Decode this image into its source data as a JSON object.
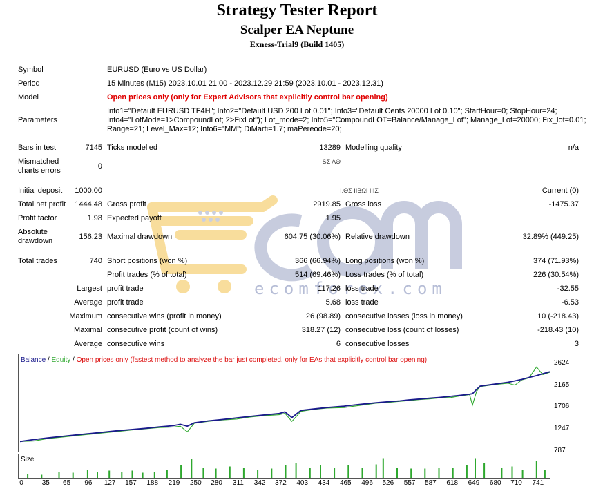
{
  "header": {
    "title": "Strategy Tester Report",
    "ea_name": "Scalper EA Neptune",
    "server": "Exness-Trial9 (Build 1405)"
  },
  "settings": {
    "symbol_label": "Symbol",
    "symbol_value": "EURUSD (Euro vs US Dollar)",
    "period_label": "Period",
    "period_value": "15 Minutes (M15) 2023.10.01 21:00 - 2023.12.29 21:59 (2023.10.01 - 2023.12.31)",
    "model_label": "Model",
    "model_value": "Open prices only (only for Expert Advisors that explicitly control bar opening)",
    "parameters_label": "Parameters",
    "parameters_lines": [
      "Info1=\"Default EURUSD TF4H\"; Info2=\"Default USD 200 Lot 0.01\"; Info3=\"Default Cents 20000 Lot 0.10\"; StartHour=0; StopHour=24;",
      "Info4=\"LotMode=1>CompoundLot; 2>FixLot\"); Lot_mode=2; Info5=\"CompoundLOT=Balance/Manage_Lot\"; Manage_Lot=20000; Fix_lot=0.01;",
      "Range=21; Level_Max=12; Info6=\"MM\"; DiMarti=1.7; maPereode=20;"
    ]
  },
  "stats": {
    "bars_in_test_label": "Bars in test",
    "bars_in_test": "7145",
    "ticks_modelled_label": "Ticks modelled",
    "ticks_modelled": "13289",
    "modelling_quality_label": "Modelling quality",
    "modelling_quality": "n/a",
    "mismatched_label_1": "Mismatched",
    "mismatched_label_2": "charts errors",
    "mismatched": "0",
    "mismatched_mid": "ЅΣ ΛΘ",
    "initial_deposit_label": "Initial deposit",
    "initial_deposit": "1000.00",
    "spread_mid": "Ι.ΘΣ ΙΙΒΩΙ ΙΙΙΣ",
    "spread_right": "Current (0)",
    "total_net_profit_label": "Total net profit",
    "total_net_profit": "1444.48",
    "gross_profit_label": "Gross profit",
    "gross_profit": "2919.85",
    "gross_loss_label": "Gross loss",
    "gross_loss": "-1475.37",
    "profit_factor_label": "Profit factor",
    "profit_factor": "1.98",
    "expected_payoff_label": "Expected payoff",
    "expected_payoff": "1.95",
    "absolute_drawdown_label_1": "Absolute",
    "absolute_drawdown_label_2": "drawdown",
    "absolute_drawdown": "156.23",
    "maximal_drawdown_label": "Maximal drawdown",
    "maximal_drawdown": "604.75 (30.06%)",
    "relative_drawdown_label": "Relative drawdown",
    "relative_drawdown": "32.89% (449.25)",
    "total_trades_label": "Total trades",
    "total_trades": "740",
    "short_positions_label": "Short positions (won %)",
    "short_positions": "366 (66.94%)",
    "long_positions_label": "Long positions (won %)",
    "long_positions": "374 (71.93%)",
    "profit_trades_label": "Profit trades (% of total)",
    "profit_trades": "514 (69.46%)",
    "loss_trades_label": "Loss trades (% of total)",
    "loss_trades": "226 (30.54%)",
    "largest_label": "Largest",
    "largest_profit_label": "profit trade",
    "largest_profit": "117.26",
    "largest_loss_label": "loss trade",
    "largest_loss": "-32.55",
    "average_label": "Average",
    "average_profit_label": "profit trade",
    "average_profit": "5.68",
    "average_loss_label": "loss trade",
    "average_loss": "-6.53",
    "maximum_label": "Maximum",
    "max_cons_wins_label": "consecutive wins (profit in money)",
    "max_cons_wins": "26 (98.89)",
    "max_cons_losses_label": "consecutive losses (loss in money)",
    "max_cons_losses": "10 (-218.43)",
    "maximal_label": "Maximal",
    "maximal_cons_profit_label": "consecutive profit (count of wins)",
    "maximal_cons_profit": "318.27 (12)",
    "maximal_cons_loss_label": "consecutive loss (count of losses)",
    "maximal_cons_loss": "-218.43 (10)",
    "average2_label": "Average",
    "avg_cons_wins_label": "consecutive wins",
    "avg_cons_wins": "6",
    "avg_cons_losses_label": "consecutive losses",
    "avg_cons_losses": "3"
  },
  "watermark": {
    "brand": "ecomforex.com"
  },
  "chart_legend": {
    "balance": "Balance",
    "sep1": " / ",
    "equity": "Equity",
    "sep2": " / ",
    "rest": "Open prices only (fastest method to analyze the bar just completed, only for EAs that explicitly control bar opening)"
  },
  "size_label": "Size",
  "colors": {
    "balance": "#1a1a8c",
    "equity": "#2ea82e",
    "size_bars": "#2ea82e",
    "model_text": "#e00000"
  },
  "chart_data": {
    "type": "line",
    "title": "",
    "y_ticks": [
      "2624",
      "2165",
      "1706",
      "1247",
      "787"
    ],
    "x_ticks": [
      "0",
      "35",
      "65",
      "96",
      "127",
      "157",
      "188",
      "219",
      "250",
      "280",
      "311",
      "342",
      "372",
      "403",
      "434",
      "465",
      "496",
      "526",
      "557",
      "587",
      "618",
      "649",
      "680",
      "710",
      "741"
    ],
    "ylim": [
      787,
      2624
    ],
    "xlim": [
      0,
      760
    ],
    "series": [
      {
        "name": "Balance",
        "x": [
          0,
          20,
          40,
          60,
          80,
          100,
          120,
          140,
          160,
          180,
          200,
          219,
          230,
          240,
          250,
          270,
          290,
          311,
          330,
          350,
          372,
          380,
          390,
          403,
          420,
          440,
          465,
          480,
          496,
          510,
          526,
          545,
          557,
          575,
          587,
          600,
          618,
          630,
          645,
          649,
          655,
          660,
          680,
          700,
          710,
          720,
          730,
          741,
          750,
          760
        ],
        "y": [
          1000,
          1040,
          1075,
          1105,
          1135,
          1165,
          1195,
          1225,
          1250,
          1275,
          1305,
          1330,
          1360,
          1320,
          1390,
          1430,
          1460,
          1495,
          1525,
          1555,
          1585,
          1620,
          1500,
          1650,
          1680,
          1710,
          1740,
          1765,
          1790,
          1810,
          1830,
          1850,
          1870,
          1890,
          1905,
          1920,
          1945,
          1965,
          1990,
          2000,
          2090,
          2160,
          2200,
          2240,
          2270,
          2300,
          2340,
          2380,
          2420,
          2460
        ]
      },
      {
        "name": "Equity",
        "x": [
          0,
          20,
          40,
          60,
          80,
          100,
          120,
          140,
          160,
          180,
          200,
          219,
          230,
          240,
          250,
          270,
          290,
          311,
          330,
          350,
          372,
          380,
          390,
          403,
          420,
          440,
          465,
          480,
          496,
          510,
          526,
          545,
          557,
          575,
          587,
          600,
          618,
          630,
          645,
          649,
          655,
          660,
          680,
          700,
          710,
          720,
          730,
          741,
          750,
          760
        ],
        "y": [
          1000,
          1010,
          1060,
          1090,
          1120,
          1150,
          1180,
          1210,
          1240,
          1265,
          1290,
          1300,
          1320,
          1200,
          1380,
          1420,
          1450,
          1470,
          1510,
          1540,
          1560,
          1590,
          1420,
          1630,
          1670,
          1700,
          1710,
          1740,
          1770,
          1800,
          1815,
          1840,
          1855,
          1880,
          1890,
          1910,
          1920,
          1950,
          1980,
          1760,
          2050,
          2150,
          2190,
          2220,
          2180,
          2290,
          2330,
          2560,
          2400,
          2450
        ]
      }
    ],
    "size_bars": [
      {
        "x": 10,
        "h": 0.2
      },
      {
        "x": 30,
        "h": 0.15
      },
      {
        "x": 55,
        "h": 0.3
      },
      {
        "x": 75,
        "h": 0.25
      },
      {
        "x": 96,
        "h": 0.4
      },
      {
        "x": 110,
        "h": 0.3
      },
      {
        "x": 127,
        "h": 0.35
      },
      {
        "x": 145,
        "h": 0.3
      },
      {
        "x": 160,
        "h": 0.35
      },
      {
        "x": 175,
        "h": 0.25
      },
      {
        "x": 192,
        "h": 0.3
      },
      {
        "x": 210,
        "h": 0.4
      },
      {
        "x": 230,
        "h": 0.6
      },
      {
        "x": 245,
        "h": 0.9
      },
      {
        "x": 262,
        "h": 0.5
      },
      {
        "x": 280,
        "h": 0.45
      },
      {
        "x": 300,
        "h": 0.55
      },
      {
        "x": 320,
        "h": 0.5
      },
      {
        "x": 340,
        "h": 0.4
      },
      {
        "x": 360,
        "h": 0.45
      },
      {
        "x": 380,
        "h": 0.6
      },
      {
        "x": 395,
        "h": 0.7
      },
      {
        "x": 415,
        "h": 0.5
      },
      {
        "x": 430,
        "h": 0.6
      },
      {
        "x": 450,
        "h": 0.5
      },
      {
        "x": 470,
        "h": 0.6
      },
      {
        "x": 490,
        "h": 0.5
      },
      {
        "x": 510,
        "h": 0.65
      },
      {
        "x": 520,
        "h": 0.95
      },
      {
        "x": 540,
        "h": 0.5
      },
      {
        "x": 560,
        "h": 0.45
      },
      {
        "x": 580,
        "h": 0.45
      },
      {
        "x": 600,
        "h": 0.5
      },
      {
        "x": 620,
        "h": 0.5
      },
      {
        "x": 640,
        "h": 0.6
      },
      {
        "x": 652,
        "h": 0.95
      },
      {
        "x": 665,
        "h": 0.7
      },
      {
        "x": 690,
        "h": 0.5
      },
      {
        "x": 705,
        "h": 0.55
      },
      {
        "x": 720,
        "h": 0.4
      },
      {
        "x": 740,
        "h": 0.8
      },
      {
        "x": 752,
        "h": 0.4
      }
    ]
  }
}
